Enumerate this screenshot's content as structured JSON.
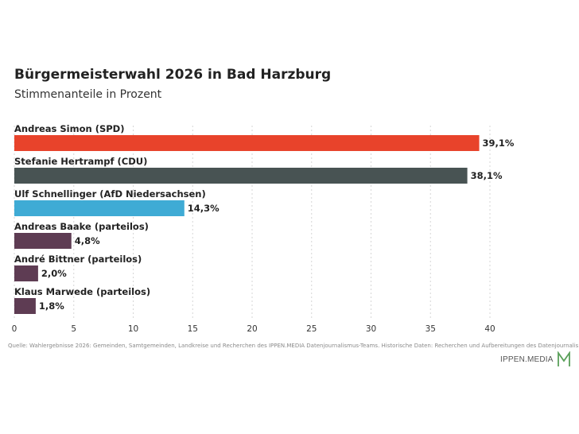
{
  "header": {
    "title": "Bürgermeisterwahl 2026 in Bad Harzburg",
    "subtitle": "Stimmenanteile in Prozent"
  },
  "chart_data": {
    "type": "bar",
    "orientation": "horizontal",
    "categories": [
      "Andreas Simon (SPD)",
      "Stefanie Hertrampf (CDU)",
      "Ulf Schnellinger (AfD Niedersachsen)",
      "Andreas Baake (parteilos)",
      "André Bittner (parteilos)",
      "Klaus Marwede (parteilos)"
    ],
    "values": [
      39.1,
      38.1,
      14.3,
      4.8,
      2.0,
      1.8
    ],
    "value_labels": [
      "39,1%",
      "38,1%",
      "14,3%",
      "4,8%",
      "2,0%",
      "1,8%"
    ],
    "colors": [
      "#e8432b",
      "#485353",
      "#3fabd5",
      "#5e3c53",
      "#5e3c53",
      "#5e3c53"
    ],
    "xlim": [
      0,
      40
    ],
    "xticks": [
      0,
      5,
      10,
      15,
      20,
      25,
      30,
      35,
      40
    ],
    "grid": "vertical dotted"
  },
  "footer": {
    "source": "Quelle: Wahlergebnisse 2026: Gemeinden, Samtgemeinden, Landkreise und Recherchen des IPPEN.MEDIA Datenjournalismus-Teams. Historische Daten: Recherchen und Aufbereitungen des Datenjournalismus-Teams.",
    "logo_text": "IPPEN.MEDIA",
    "logo_color": "#5aa05a"
  }
}
